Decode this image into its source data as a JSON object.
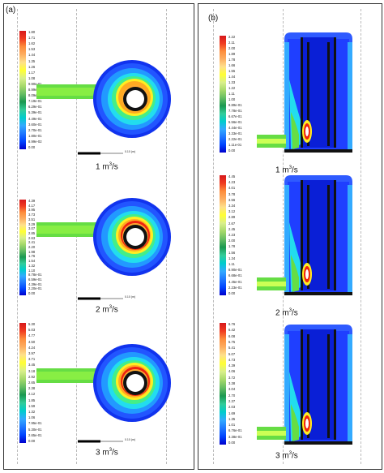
{
  "panels": [
    {
      "label": "(a)"
    },
    {
      "label": "(b)"
    }
  ],
  "units": "m3/s",
  "cases": [
    {
      "panel": 0,
      "flow": "1",
      "unit_base": "m",
      "unit_exp": "3",
      "unit_tail": "/s",
      "scale_text": "0.10 (m)",
      "colorbar": [
        "1.80",
        "1.71",
        "1.62",
        "1.53",
        "1.44",
        "1.35",
        "1.26",
        "1.17",
        "1.08",
        "9.90e-01",
        "8.99e-01",
        "8.09e-01",
        "7.19e-01",
        "6.29e-01",
        "5.39e-01",
        "4.49e-01",
        "3.60e-01",
        "2.70e-01",
        "1.80e-01",
        "8.99e-02",
        "0.00"
      ]
    },
    {
      "panel": 0,
      "flow": "2",
      "unit_base": "m",
      "unit_exp": "3",
      "unit_tail": "/s",
      "scale_text": "0.10 (m)",
      "colorbar": [
        "4.39",
        "4.17",
        "3.95",
        "3.73",
        "3.51",
        "3.29",
        "3.07",
        "2.85",
        "2.63",
        "2.41",
        "2.20",
        "1.98",
        "1.76",
        "1.54",
        "1.32",
        "1.10",
        "8.78e-01",
        "6.59e-01",
        "4.39e-01",
        "2.20e-01",
        "0.00"
      ]
    },
    {
      "panel": 0,
      "flow": "3",
      "unit_base": "m",
      "unit_exp": "3",
      "unit_tail": "/s",
      "scale_text": "0.10 (m)",
      "colorbar": [
        "5.30",
        "5.03",
        "4.77",
        "4.50",
        "4.24",
        "3.97",
        "3.71",
        "3.45",
        "3.18",
        "2.92",
        "2.65",
        "2.38",
        "2.12",
        "1.85",
        "1.59",
        "1.32",
        "1.06",
        "7.95e-01",
        "5.30e-01",
        "2.65e-01",
        "0.00"
      ]
    },
    {
      "panel": 1,
      "flow": "1",
      "unit_base": "m",
      "unit_exp": "3",
      "unit_tail": "/s",
      "colorbar": [
        "2.22",
        "2.11",
        "2.00",
        "1.89",
        "1.78",
        "1.66",
        "1.55",
        "1.44",
        "1.33",
        "1.22",
        "1.11",
        "1.00",
        "8.89e-01",
        "7.78e-01",
        "6.67e-01",
        "5.56e-01",
        "4.44e-01",
        "3.33e-01",
        "2.22e-01",
        "1.11e-01",
        "0.00"
      ]
    },
    {
      "panel": 1,
      "flow": "2",
      "unit_base": "m",
      "unit_exp": "3",
      "unit_tail": "/s",
      "colorbar": [
        "4.45",
        "4.23",
        "4.01",
        "3.78",
        "3.56",
        "3.34",
        "3.12",
        "2.89",
        "2.67",
        "2.45",
        "2.23",
        "2.00",
        "1.78",
        "1.56",
        "1.34",
        "1.11",
        "8.90e-01",
        "6.68e-01",
        "4.45e-01",
        "2.23e-01",
        "0.00"
      ]
    },
    {
      "panel": 1,
      "flow": "3",
      "unit_base": "m",
      "unit_exp": "3",
      "unit_tail": "/s",
      "colorbar": [
        "6.76",
        "6.42",
        "6.08",
        "5.75",
        "5.41",
        "5.07",
        "4.73",
        "4.39",
        "4.06",
        "3.72",
        "3.38",
        "3.04",
        "2.70",
        "2.37",
        "2.03",
        "1.69",
        "1.35",
        "1.01",
        "6.76e-01",
        "3.38e-01",
        "0.00"
      ]
    }
  ],
  "colors": {
    "jet": [
      "#d7191c",
      "#f03b20",
      "#fd8d3c",
      "#fdae61",
      "#fee08b",
      "#ffff33",
      "#d9ef8b",
      "#a6d96a",
      "#66bd63",
      "#1a9850",
      "#33cc99",
      "#00cccc",
      "#33aaff",
      "#1f78ff",
      "#0044ff",
      "#0000cc"
    ],
    "body_blue": "#1f3fff",
    "deep_blue": "#0a1fd6",
    "green": "#66dd44",
    "cyan": "#22ddee",
    "yellow": "#ffee22",
    "red": "#ee2211"
  }
}
